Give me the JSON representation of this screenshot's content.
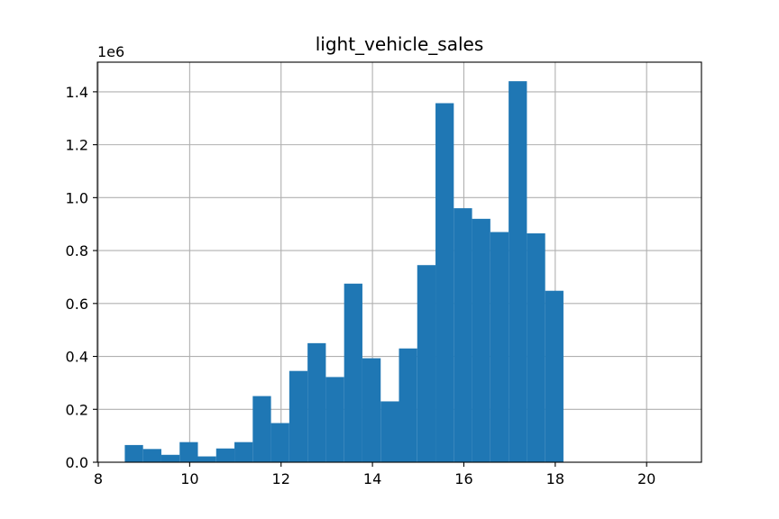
{
  "chart_data": {
    "type": "bar",
    "title": "light_vehicle_sales",
    "xlabel": "",
    "ylabel": "",
    "y_offset_label": "1e6",
    "xlim": [
      7.98,
      21.2
    ],
    "ylim": [
      0,
      1.512
    ],
    "grid": true,
    "bar_color": "#1f77b4",
    "grid_color": "#b0b0b0",
    "x_ticks": [
      8,
      10,
      12,
      14,
      16,
      18,
      20
    ],
    "y_ticks": [
      0.0,
      0.2,
      0.4,
      0.6,
      0.8,
      1.0,
      1.2,
      1.4
    ],
    "x_tick_labels": [
      "8",
      "10",
      "12",
      "14",
      "16",
      "18",
      "20"
    ],
    "y_tick_labels": [
      "0.0",
      "0.2",
      "0.4",
      "0.6",
      "0.8",
      "1.0",
      "1.2",
      "1.4"
    ],
    "bins": [
      {
        "x0": 8.58,
        "x1": 8.98,
        "value": 0.065
      },
      {
        "x0": 8.98,
        "x1": 9.38,
        "value": 0.05
      },
      {
        "x0": 9.38,
        "x1": 9.78,
        "value": 0.028
      },
      {
        "x0": 9.78,
        "x1": 10.18,
        "value": 0.076
      },
      {
        "x0": 10.18,
        "x1": 10.58,
        "value": 0.022
      },
      {
        "x0": 10.58,
        "x1": 10.98,
        "value": 0.052
      },
      {
        "x0": 10.98,
        "x1": 11.38,
        "value": 0.076
      },
      {
        "x0": 11.38,
        "x1": 11.78,
        "value": 0.25
      },
      {
        "x0": 11.78,
        "x1": 12.18,
        "value": 0.148
      },
      {
        "x0": 12.18,
        "x1": 12.58,
        "value": 0.345
      },
      {
        "x0": 12.58,
        "x1": 12.98,
        "value": 0.45
      },
      {
        "x0": 12.98,
        "x1": 13.38,
        "value": 0.322
      },
      {
        "x0": 13.38,
        "x1": 13.78,
        "value": 0.675
      },
      {
        "x0": 13.78,
        "x1": 14.18,
        "value": 0.393
      },
      {
        "x0": 14.18,
        "x1": 14.58,
        "value": 0.23
      },
      {
        "x0": 14.58,
        "x1": 14.98,
        "value": 0.43
      },
      {
        "x0": 14.98,
        "x1": 15.38,
        "value": 0.745
      },
      {
        "x0": 15.38,
        "x1": 15.78,
        "value": 1.357
      },
      {
        "x0": 15.78,
        "x1": 16.18,
        "value": 0.96
      },
      {
        "x0": 16.18,
        "x1": 16.58,
        "value": 0.92
      },
      {
        "x0": 16.58,
        "x1": 16.98,
        "value": 0.87
      },
      {
        "x0": 16.98,
        "x1": 17.38,
        "value": 1.44
      },
      {
        "x0": 17.38,
        "x1": 17.78,
        "value": 0.865
      },
      {
        "x0": 17.78,
        "x1": 18.18,
        "value": 0.648
      }
    ]
  }
}
